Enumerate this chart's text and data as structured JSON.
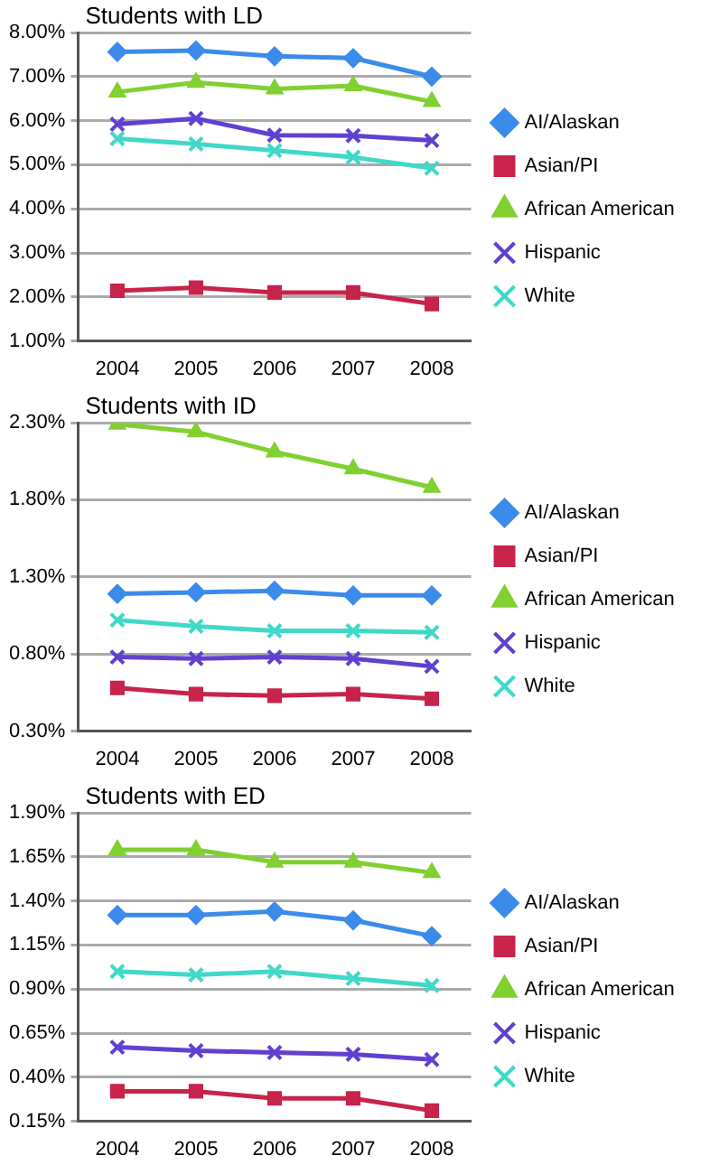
{
  "chart_data": [
    {
      "type": "line",
      "title": "Students with LD",
      "categories": [
        "2004",
        "2005",
        "2006",
        "2007",
        "2008"
      ],
      "ylim": [
        1,
        8
      ],
      "yticks": [
        {
          "value": 1,
          "label": "1.00%"
        },
        {
          "value": 2,
          "label": "2.00%"
        },
        {
          "value": 3,
          "label": "3.00%"
        },
        {
          "value": 4,
          "label": "4.00%"
        },
        {
          "value": 5,
          "label": "5.00%"
        },
        {
          "value": 6,
          "label": "6.00%"
        },
        {
          "value": 7,
          "label": "7.00%"
        },
        {
          "value": 8,
          "label": "8.00%"
        }
      ],
      "grid": "y",
      "legend": "right",
      "series": [
        {
          "name": "AI/Alaskan",
          "color": "#3b8beb",
          "marker": "diamond",
          "values": [
            7.56,
            7.59,
            7.46,
            7.42,
            7.0
          ]
        },
        {
          "name": "Asian/PI",
          "color": "#c8234a",
          "marker": "square",
          "values": [
            2.14,
            2.21,
            2.1,
            2.1,
            1.84
          ]
        },
        {
          "name": "African American",
          "color": "#80d030",
          "marker": "triangle",
          "values": [
            6.65,
            6.87,
            6.72,
            6.79,
            6.43
          ]
        },
        {
          "name": "Hispanic",
          "color": "#6040d0",
          "marker": "cross",
          "values": [
            5.92,
            6.05,
            5.67,
            5.66,
            5.55
          ]
        },
        {
          "name": "White",
          "color": "#40d8c8",
          "marker": "cross",
          "values": [
            5.59,
            5.47,
            5.32,
            5.17,
            4.92
          ]
        }
      ]
    },
    {
      "type": "line",
      "title": "Students with ID",
      "categories": [
        "2004",
        "2005",
        "2006",
        "2007",
        "2008"
      ],
      "ylim": [
        0.3,
        2.3
      ],
      "yticks": [
        {
          "value": 0.3,
          "label": "0.30%"
        },
        {
          "value": 0.8,
          "label": "0.80%"
        },
        {
          "value": 1.3,
          "label": "1.30%"
        },
        {
          "value": 1.8,
          "label": "1.80%"
        },
        {
          "value": 2.3,
          "label": "2.30%"
        }
      ],
      "grid": "y",
      "legend": "right",
      "series": [
        {
          "name": "AI/Alaskan",
          "color": "#3b8beb",
          "marker": "diamond",
          "values": [
            1.19,
            1.2,
            1.21,
            1.18,
            1.18
          ]
        },
        {
          "name": "Asian/PI",
          "color": "#c8234a",
          "marker": "square",
          "values": [
            0.58,
            0.54,
            0.53,
            0.54,
            0.51
          ]
        },
        {
          "name": "African American",
          "color": "#80d030",
          "marker": "triangle",
          "values": [
            2.29,
            2.24,
            2.11,
            2.0,
            1.88
          ]
        },
        {
          "name": "Hispanic",
          "color": "#6040d0",
          "marker": "cross",
          "values": [
            0.78,
            0.77,
            0.78,
            0.77,
            0.72
          ]
        },
        {
          "name": "White",
          "color": "#40d8c8",
          "marker": "cross",
          "values": [
            1.02,
            0.98,
            0.95,
            0.95,
            0.94
          ]
        }
      ]
    },
    {
      "type": "line",
      "title": "Students with ED",
      "categories": [
        "2004",
        "2005",
        "2006",
        "2007",
        "2008"
      ],
      "ylim": [
        0.15,
        1.9
      ],
      "yticks": [
        {
          "value": 0.15,
          "label": "0.15%"
        },
        {
          "value": 0.4,
          "label": "0.40%"
        },
        {
          "value": 0.65,
          "label": "0.65%"
        },
        {
          "value": 0.9,
          "label": "0.90%"
        },
        {
          "value": 1.15,
          "label": "1.15%"
        },
        {
          "value": 1.4,
          "label": "1.40%"
        },
        {
          "value": 1.65,
          "label": "1.65%"
        },
        {
          "value": 1.9,
          "label": "1.90%"
        }
      ],
      "grid": "y",
      "legend": "right",
      "series": [
        {
          "name": "AI/Alaskan",
          "color": "#3b8beb",
          "marker": "diamond",
          "values": [
            1.32,
            1.32,
            1.34,
            1.29,
            1.2
          ]
        },
        {
          "name": "Asian/PI",
          "color": "#c8234a",
          "marker": "square",
          "values": [
            0.32,
            0.32,
            0.28,
            0.28,
            0.21
          ]
        },
        {
          "name": "African American",
          "color": "#80d030",
          "marker": "triangle",
          "values": [
            1.69,
            1.69,
            1.62,
            1.62,
            1.56
          ]
        },
        {
          "name": "Hispanic",
          "color": "#6040d0",
          "marker": "cross",
          "values": [
            0.57,
            0.55,
            0.54,
            0.53,
            0.5
          ]
        },
        {
          "name": "White",
          "color": "#40d8c8",
          "marker": "cross",
          "values": [
            1.0,
            0.98,
            1.0,
            0.96,
            0.92
          ]
        }
      ]
    }
  ]
}
